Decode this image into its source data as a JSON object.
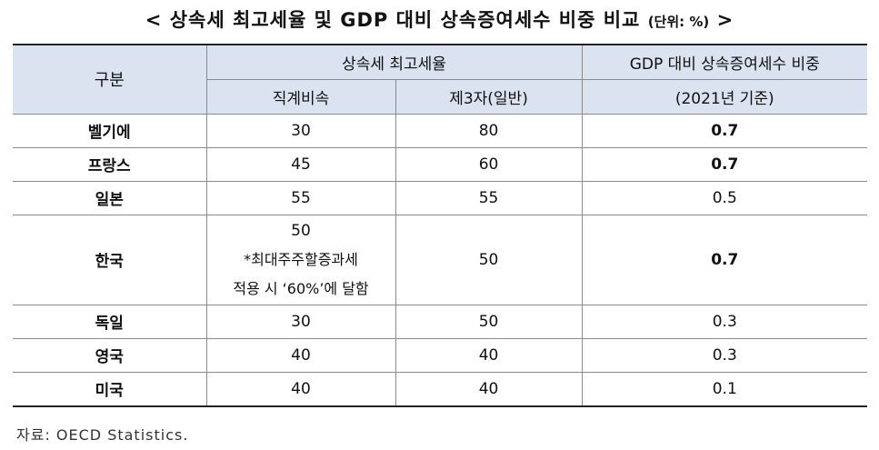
{
  "title": {
    "main": "< 상속세 최고세율 및 GDP 대비 상속증여세수 비중 비교",
    "unit": "(단위: %)",
    "end": ">"
  },
  "table": {
    "header": {
      "category": "구분",
      "top_rate_group": "상속세 최고세율",
      "direct_line": "직계비속",
      "third_party": "제3자(일반)",
      "gdp_ratio_line1": "GDP 대비 상속증여세수 비중",
      "gdp_ratio_line2": "(2021년 기준)"
    },
    "rows": [
      {
        "country": "벨기에",
        "direct": "30",
        "third": "80",
        "gdp": "0.7",
        "gdp_bold": true
      },
      {
        "country": "프랑스",
        "direct": "45",
        "third": "60",
        "gdp": "0.7",
        "gdp_bold": true
      },
      {
        "country": "일본",
        "direct": "55",
        "third": "55",
        "gdp": "0.5",
        "gdp_bold": false
      },
      {
        "country": "한국",
        "direct": "50",
        "direct_note1": "*최대주주할증과세",
        "direct_note2": "적용 시 ‘60%’에 달함",
        "third": "50",
        "gdp": "0.7",
        "gdp_bold": true
      },
      {
        "country": "독일",
        "direct": "30",
        "third": "50",
        "gdp": "0.3",
        "gdp_bold": false
      },
      {
        "country": "영국",
        "direct": "40",
        "third": "40",
        "gdp": "0.3",
        "gdp_bold": false
      },
      {
        "country": "미국",
        "direct": "40",
        "third": "40",
        "gdp": "0.1",
        "gdp_bold": false
      }
    ]
  },
  "source": "자료: OECD Statistics."
}
